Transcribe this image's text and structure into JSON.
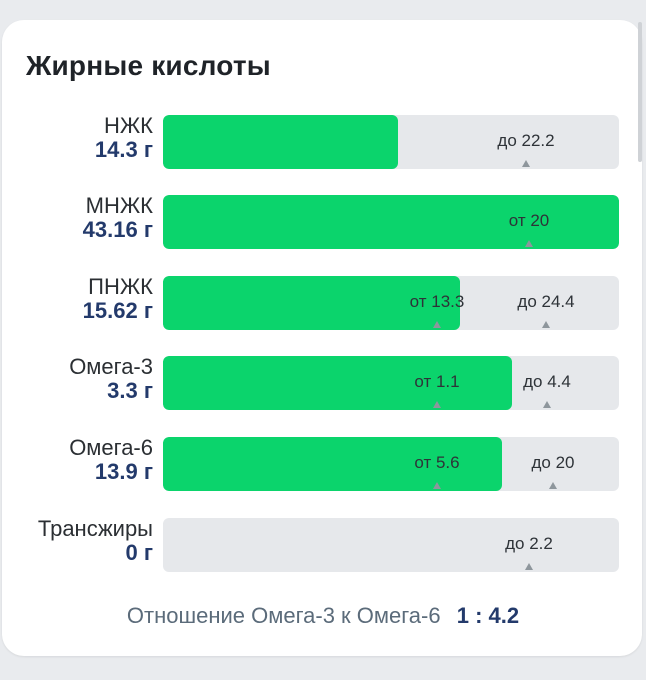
{
  "title": "Жирные кислоты",
  "colors": {
    "fill": "#0bd46c",
    "track": "#e6e8eb",
    "value_text": "#233a6b",
    "label_text": "#2b2f33"
  },
  "rows": [
    {
      "name": "НЖК",
      "value": "14.3 г",
      "fill_fraction": 0.515,
      "markers": [
        {
          "text": "до 22.2",
          "pos": 0.795
        }
      ]
    },
    {
      "name": "МНЖК",
      "value": "43.16 г",
      "fill_fraction": 1.0,
      "markers": [
        {
          "text": "от 20",
          "pos": 0.803
        }
      ]
    },
    {
      "name": "ПНЖК",
      "value": "15.62 г",
      "fill_fraction": 0.652,
      "markers": [
        {
          "text": "от 13.3",
          "pos": 0.6
        },
        {
          "text": "до 24.4",
          "pos": 0.84
        }
      ]
    },
    {
      "name": "Омега-3",
      "value": "3.3 г",
      "fill_fraction": 0.765,
      "markers": [
        {
          "text": "от 1.1",
          "pos": 0.6
        },
        {
          "text": "до 4.4",
          "pos": 0.843
        }
      ]
    },
    {
      "name": "Омега-6",
      "value": "13.9 г",
      "fill_fraction": 0.743,
      "markers": [
        {
          "text": "от 5.6",
          "pos": 0.6
        },
        {
          "text": "до 20",
          "pos": 0.855
        }
      ]
    },
    {
      "name": "Трансжиры",
      "value": "0 г",
      "fill_fraction": 0.0,
      "markers": [
        {
          "text": "до 2.2",
          "pos": 0.803
        }
      ]
    }
  ],
  "ratio": {
    "label": "Отношение Омега-3 к Омега-6",
    "value": "1 : 4.2"
  }
}
